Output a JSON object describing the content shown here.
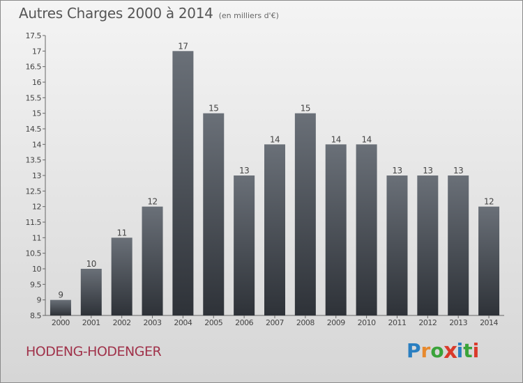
{
  "title": "Autres Charges 2000 à 2014",
  "unit": "(en milliers d'€)",
  "town": "HODENG-HODENGER",
  "logo": {
    "letters": [
      "P",
      "r",
      "o",
      "x",
      "i",
      "t",
      "i"
    ],
    "colors": [
      "#2a7fc1",
      "#e7892d",
      "#3aa33a",
      "#d93a2b",
      "#2a7fc1",
      "#3aa33a",
      "#d93a2b"
    ]
  },
  "chart_data": {
    "type": "bar",
    "categories": [
      "2000",
      "2001",
      "2002",
      "2003",
      "2004",
      "2005",
      "2006",
      "2007",
      "2008",
      "2009",
      "2010",
      "2011",
      "2012",
      "2013",
      "2014"
    ],
    "values": [
      9,
      10,
      11,
      12,
      17,
      15,
      13,
      14,
      15,
      14,
      14,
      13,
      13,
      13,
      12
    ],
    "data_labels": [
      "9",
      "10",
      "11",
      "12",
      "17",
      "15",
      "13",
      "14",
      "15",
      "14",
      "14",
      "13",
      "13",
      "13",
      "12"
    ],
    "yticks": [
      "8.5",
      "9",
      "9.5",
      "10",
      "10.5",
      "11",
      "11.5",
      "12",
      "12.5",
      "13",
      "13.5",
      "14",
      "14.5",
      "15",
      "15.5",
      "16",
      "16.5",
      "17",
      "17.5"
    ],
    "ylim": [
      8.5,
      17.5
    ],
    "grid": false,
    "bar_color": "#4e545c"
  }
}
